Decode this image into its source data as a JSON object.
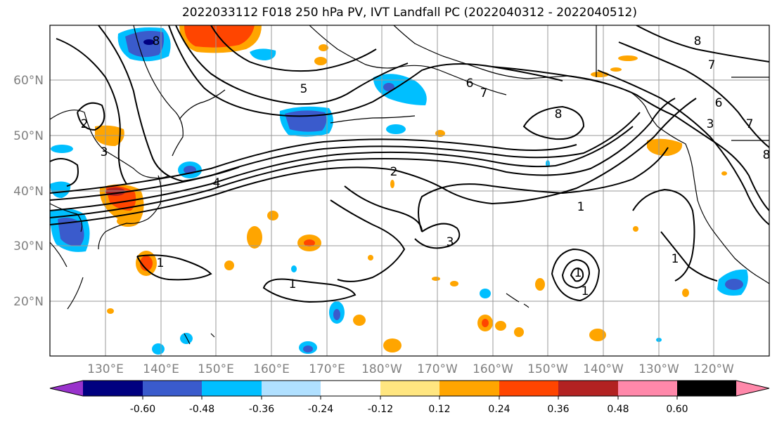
{
  "title": "2022033112 F018 250 hPa PV, IVT Landfall PC (2022040312 - 2022040512)",
  "lat_labels": [
    "60°N",
    "50°N",
    "40°N",
    "30°N",
    "20°N"
  ],
  "lon_labels": [
    "130°E",
    "140°E",
    "150°E",
    "160°E",
    "170°E",
    "180°W",
    "170°W",
    "160°W",
    "150°W",
    "140°W",
    "130°W",
    "120°W"
  ],
  "colorbar": {
    "colors": [
      "#9933cc",
      "#000080",
      "#3a5bcc",
      "#00bfff",
      "#b0e0ff",
      "#ffffff",
      "#ffe680",
      "#ffa500",
      "#ff4500",
      "#b22222",
      "#ff88aa"
    ],
    "tick_labels": [
      "-0.60",
      "-0.48",
      "-0.36",
      "-0.24",
      "-0.12",
      "0.12",
      "0.24",
      "0.36",
      "0.48",
      "0.60"
    ]
  },
  "contour_labels": [
    "8",
    "5",
    "6",
    "7",
    "8",
    "2",
    "3",
    "4",
    "2",
    "1",
    "3",
    "1",
    "1",
    "1",
    "1",
    "1",
    "6",
    "7",
    "3",
    "8",
    "7",
    "8"
  ]
}
